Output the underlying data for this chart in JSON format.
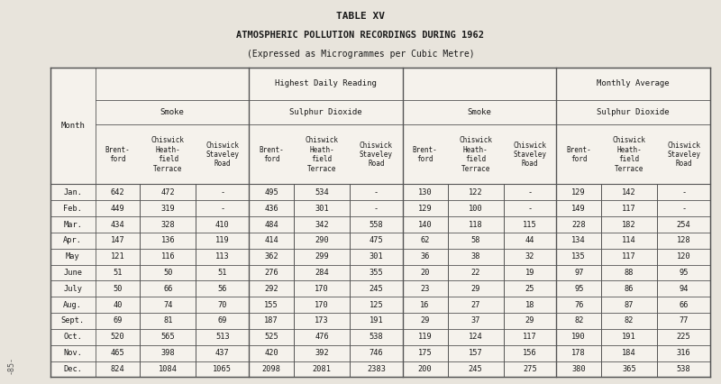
{
  "title1": "TABLE XV",
  "title2": "ATMOSPHERIC POLLUTION RECORDINGS DURING 1962",
  "title3": "(Expressed as Microgrammes per Cubic Metre)",
  "bg_color": "#e8e4dc",
  "table_bg": "#f5f2ec",
  "months": [
    "Jan.",
    "Feb.",
    "Mar.",
    "Apr.",
    "May",
    "June",
    "July",
    "Aug.",
    "Sept.",
    "Oct.",
    "Nov.",
    "Dec."
  ],
  "col_headers_l1": [
    "Highest Daily Reading",
    "Monthly Average"
  ],
  "col_headers_l2": [
    "Smoke",
    "Sulphur Dioxide",
    "Smoke",
    "Sulphur Dioxide"
  ],
  "col_headers_l3": [
    "Brent-\nford",
    "Chiswick\nHeath-\nfield\nTerrace",
    "Chiswick\nStaveley\nRoad",
    "Brent-\nford",
    "Chiswick\nHeath-\nfield\nTerrace",
    "Chiswick\nStaveley\nRoad",
    "Brent-\nford",
    "Chiswick\nHeath-\nfield\nTerrace",
    "Chiswick\nStaveley\nRoad",
    "Brent-\nford",
    "Chiswick\nHeath-\nfield\nTerrace",
    "Chiswick\nStaveley\nRoad"
  ],
  "data": [
    [
      "642",
      "472",
      "-",
      "495",
      "534",
      "-",
      "130",
      "122",
      "-",
      "129",
      "142",
      "-"
    ],
    [
      "449",
      "319",
      "-",
      "436",
      "301",
      "-",
      "129",
      "100",
      "-",
      "149",
      "117",
      "-"
    ],
    [
      "434",
      "328",
      "410",
      "484",
      "342",
      "558",
      "140",
      "118",
      "115",
      "228",
      "182",
      "254"
    ],
    [
      "147",
      "136",
      "119",
      "414",
      "290",
      "475",
      "62",
      "58",
      "44",
      "134",
      "114",
      "128"
    ],
    [
      "121",
      "116",
      "113",
      "362",
      "299",
      "301",
      "36",
      "38",
      "32",
      "135",
      "117",
      "120"
    ],
    [
      "51",
      "50",
      "51",
      "276",
      "284",
      "355",
      "20",
      "22",
      "19",
      "97",
      "88",
      "95"
    ],
    [
      "50",
      "66",
      "56",
      "292",
      "170",
      "245",
      "23",
      "29",
      "25",
      "95",
      "86",
      "94"
    ],
    [
      "40",
      "74",
      "70",
      "155",
      "170",
      "125",
      "16",
      "27",
      "18",
      "76",
      "87",
      "66"
    ],
    [
      "69",
      "81",
      "69",
      "187",
      "173",
      "191",
      "29",
      "37",
      "29",
      "82",
      "82",
      "77"
    ],
    [
      "520",
      "565",
      "513",
      "525",
      "476",
      "538",
      "119",
      "124",
      "117",
      "190",
      "191",
      "225"
    ],
    [
      "465",
      "398",
      "437",
      "420",
      "392",
      "746",
      "175",
      "157",
      "156",
      "178",
      "184",
      "316"
    ],
    [
      "824",
      "1084",
      "1065",
      "2098",
      "2081",
      "2383",
      "200",
      "245",
      "275",
      "380",
      "365",
      "538"
    ]
  ]
}
